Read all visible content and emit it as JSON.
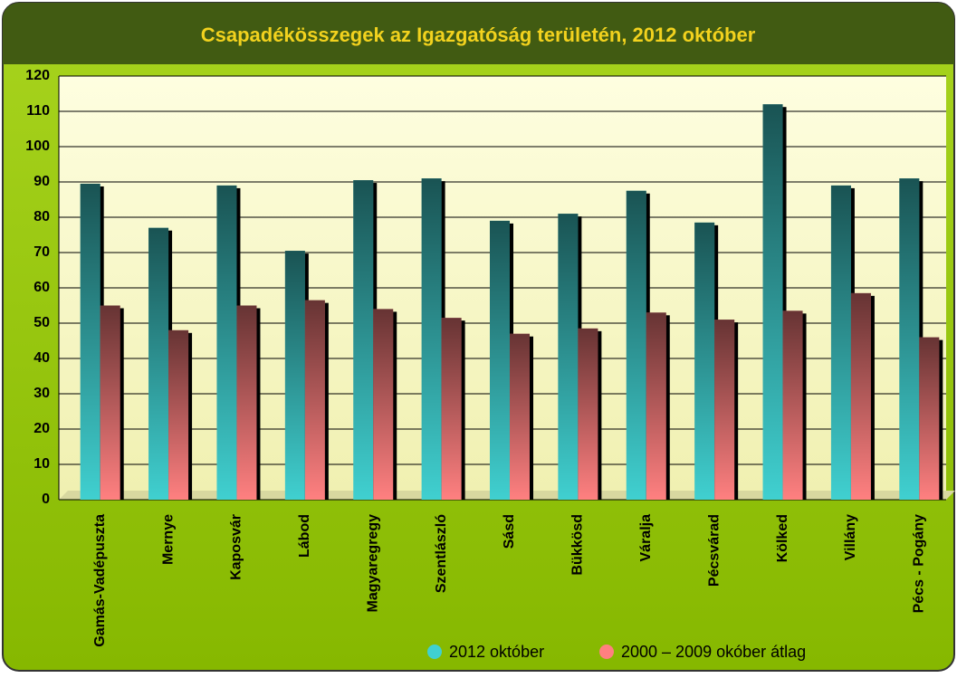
{
  "chart_data": {
    "type": "bar",
    "title": "Csapadékösszegek az Igazgatóság területén, 2012 október",
    "categories": [
      "Gamás-Vadépuszta",
      "Mernye",
      "Kaposvár",
      "Lábod",
      "Magyaregregy",
      "Szentlászló",
      "Sásd",
      "Bükkösd",
      "Váralja",
      "Pécsvárad",
      "Kölked",
      "Villány",
      "Pécs - Pogány"
    ],
    "series": [
      {
        "name": "2012 október",
        "color": "#40d0d0",
        "values": [
          89.5,
          77,
          89,
          70.5,
          90.5,
          91,
          79,
          81,
          87.5,
          78.5,
          112,
          89,
          91
        ]
      },
      {
        "name": "2000 – 2009 okóber átlag",
        "color": "#ff8080",
        "values": [
          55,
          48,
          55,
          56.5,
          54,
          51.5,
          47,
          48.5,
          53,
          51,
          53.5,
          58.5,
          46
        ]
      }
    ],
    "ylim": [
      0,
      120
    ],
    "yticks": [
      0,
      10,
      20,
      30,
      40,
      50,
      60,
      70,
      80,
      90,
      100,
      110,
      120
    ],
    "grid": true,
    "legend": "bottom"
  }
}
